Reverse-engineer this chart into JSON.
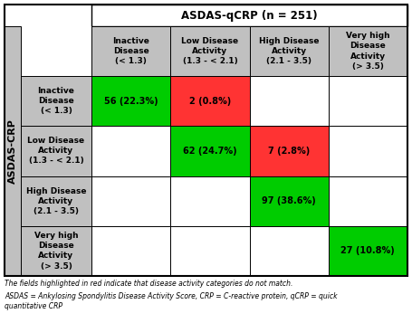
{
  "title": "ASDAS-qCRP (n = 251)",
  "col_headers": [
    "Inactive\nDisease\n(< 1.3)",
    "Low Disease\nActivity\n(1.3 - < 2.1)",
    "High Disease\nActivity\n(2.1 - 3.5)",
    "Very high\nDisease\nActivity\n(> 3.5)"
  ],
  "row_headers": [
    "Inactive\nDisease\n(< 1.3)",
    "Low Disease\nActivity\n(1.3 - < 2.1)",
    "High Disease\nActivity\n(2.1 - 3.5)",
    "Very high\nDisease\nActivity\n(> 3.5)"
  ],
  "y_label": "ASDAS-CRP",
  "cells": [
    [
      {
        "text": "56 (22.3%)",
        "color": "#00cc00"
      },
      {
        "text": "2 (0.8%)",
        "color": "#ff3333"
      },
      {
        "text": "",
        "color": "#ffffff"
      },
      {
        "text": "",
        "color": "#ffffff"
      }
    ],
    [
      {
        "text": "",
        "color": "#ffffff"
      },
      {
        "text": "62 (24.7%)",
        "color": "#00cc00"
      },
      {
        "text": "7 (2.8%)",
        "color": "#ff3333"
      },
      {
        "text": "",
        "color": "#ffffff"
      }
    ],
    [
      {
        "text": "",
        "color": "#ffffff"
      },
      {
        "text": "",
        "color": "#ffffff"
      },
      {
        "text": "97 (38.6%)",
        "color": "#00cc00"
      },
      {
        "text": "",
        "color": "#ffffff"
      }
    ],
    [
      {
        "text": "",
        "color": "#ffffff"
      },
      {
        "text": "",
        "color": "#ffffff"
      },
      {
        "text": "",
        "color": "#ffffff"
      },
      {
        "text": "27 (10.8%)",
        "color": "#00cc00"
      }
    ]
  ],
  "footnote1": "The fields highlighted in red indicate that disease activity categories do not match.",
  "footnote2": "ASDAS = Ankylosing Spondylitis Disease Activity Score, CRP = C-reactive protein, qCRP = quick",
  "footnote3": "quantitative CRP",
  "header_bg": "#c0c0c0",
  "row_header_bg": "#c0c0c0",
  "title_fontsize": 8.5,
  "header_fontsize": 6.5,
  "cell_fontsize": 7.0,
  "ylabel_fontsize": 8.0,
  "footnote_fontsize": 5.5
}
